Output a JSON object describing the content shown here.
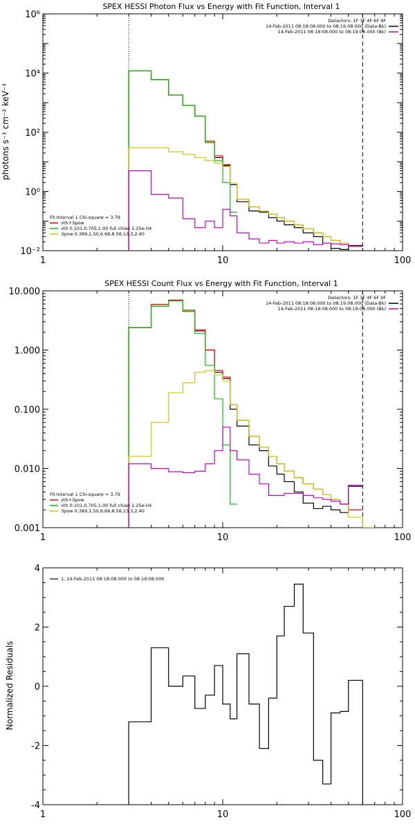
{
  "chart_data": [
    {
      "type": "line",
      "title": "SPEX HESSI Photon Flux vs Energy with Fit Function, Interval 1",
      "xlabel": "",
      "ylabel": "photons s⁻¹ cm⁻² keV⁻¹",
      "xscale": "log",
      "yscale": "log",
      "xlim": [
        1,
        100
      ],
      "ylim": [
        0.01,
        1000000
      ],
      "x_ticks": [
        {
          "value": 1,
          "label": "1"
        },
        {
          "value": 10,
          "label": "10"
        },
        {
          "value": 100,
          "label": "100"
        }
      ],
      "y_ticks": [
        {
          "value": 0.01,
          "label": "10⁻²"
        },
        {
          "value": 1,
          "label": "10⁰"
        },
        {
          "value": 100,
          "label": "10²"
        },
        {
          "value": 10000,
          "label": "10⁴"
        },
        {
          "value": 1000000,
          "label": "10⁶"
        }
      ],
      "vlines": [
        {
          "x": 3,
          "style": "dotted"
        },
        {
          "x": 60,
          "style": "dashed"
        }
      ],
      "legend_top": {
        "placement": "top-right",
        "lines": [
          {
            "text": "Detectors: 1F 3F 4F 6F 9F",
            "color": null
          },
          {
            "text": "14-Feb-2011 08:18:08.000 to 08:19:08.000 (Data-Bk)",
            "color": "#000000"
          },
          {
            "text": "14-Feb-2011 08:18:08.000 to 08:19:08.000 (Bk)",
            "color": "#cc00cc"
          }
        ]
      },
      "legend_fit": {
        "placement": "bottom-left",
        "lines": [
          {
            "text": "Fit Interval 1     Chi-square = 3.79",
            "color": null
          },
          {
            "text": "vth+3pow",
            "color": "#ff0000"
          },
          {
            "text": "vth 0.101,0.705,1.00  full chian 1.25e-04",
            "color": "#00cc00"
          },
          {
            "text": "3pow 0.389,1.50,6.68,8.58,13.3,2.40",
            "color": "#cccc00"
          }
        ]
      },
      "series": [
        {
          "color": "#000000",
          "edges": [
            3,
            4,
            5,
            6,
            7,
            8,
            9,
            10,
            11,
            12,
            14,
            16,
            18,
            20,
            22,
            25,
            28,
            32,
            36,
            40,
            45,
            50,
            60
          ],
          "values": [
            12000,
            6000,
            1800,
            800,
            350,
            45,
            14,
            7.5,
            1.7,
            0.45,
            0.22,
            0.2,
            0.13,
            0.1,
            0.075,
            0.06,
            0.04,
            0.03,
            0.018,
            0.012,
            0.011,
            0.015
          ]
        },
        {
          "color": "#ff0000",
          "edges": [
            3,
            4,
            5,
            6,
            7,
            8,
            9,
            10,
            11,
            12,
            14,
            16,
            18,
            20,
            22,
            25,
            28,
            32,
            36,
            40,
            45,
            50,
            60
          ],
          "values": [
            12000,
            6000,
            1800,
            800,
            350,
            50,
            16,
            8,
            1.9,
            0.55,
            0.3,
            0.22,
            0.17,
            0.13,
            0.1,
            0.075,
            0.055,
            0.04,
            0.03,
            0.022,
            0.018,
            0.014
          ]
        },
        {
          "color": "#00cc00",
          "edges": [
            3,
            4,
            5,
            6,
            7,
            8,
            9,
            10,
            11,
            12
          ],
          "values": [
            12000,
            6000,
            1800,
            800,
            350,
            45,
            11,
            2,
            0.2
          ]
        },
        {
          "color": "#cccc00",
          "edges": [
            3,
            4,
            5,
            6,
            7,
            8,
            9,
            10,
            11,
            12,
            14,
            16,
            18,
            20,
            22,
            25,
            28,
            32,
            36,
            40,
            45,
            50,
            60
          ],
          "values": [
            30,
            30,
            22,
            18,
            14,
            11,
            9,
            7,
            1.9,
            0.55,
            0.3,
            0.22,
            0.17,
            0.13,
            0.1,
            0.075,
            0.055,
            0.04,
            0.03,
            0.022,
            0.018,
            0.014
          ]
        },
        {
          "color": "#cc00cc",
          "edges": [
            3,
            4,
            5,
            6,
            7,
            8,
            9,
            10,
            11,
            12,
            14,
            16,
            18,
            20,
            22,
            25,
            28,
            32,
            36,
            40,
            45,
            50,
            60
          ],
          "values": [
            5,
            0.8,
            0.6,
            0.12,
            0.06,
            0.1,
            0.06,
            0.25,
            0.15,
            0.04,
            0.025,
            0.018,
            0.022,
            0.018,
            0.02,
            0.018,
            0.02,
            0.016,
            0.018,
            0.017,
            0.016,
            0.014
          ]
        }
      ]
    },
    {
      "type": "line",
      "title": "SPEX HESSI Count Flux vs Energy with Fit Function, Interval 1",
      "xlabel": "",
      "ylabel": "",
      "xscale": "log",
      "yscale": "log",
      "xlim": [
        1,
        100
      ],
      "ylim": [
        0.001,
        10
      ],
      "x_ticks": [
        {
          "value": 1,
          "label": "1"
        },
        {
          "value": 10,
          "label": "10"
        },
        {
          "value": 100,
          "label": "100"
        }
      ],
      "y_ticks": [
        {
          "value": 0.001,
          "label": "0.001"
        },
        {
          "value": 0.01,
          "label": "0.010"
        },
        {
          "value": 0.1,
          "label": "0.100"
        },
        {
          "value": 1,
          "label": "1.000"
        },
        {
          "value": 10,
          "label": "10.000"
        }
      ],
      "vlines": [
        {
          "x": 3,
          "style": "dotted"
        },
        {
          "x": 60,
          "style": "dashed"
        }
      ],
      "legend_top": {
        "placement": "top-right",
        "lines": [
          {
            "text": "Detectors: 1F 3F 4F 6F 9F",
            "color": null
          },
          {
            "text": "14-Feb-2011 08:18:08.000 to 08:19:08.000 (Data-Bk)",
            "color": "#000000"
          },
          {
            "text": "14-Feb-2011 08:18:08.000 to 08:19:08.000 (Bk)",
            "color": "#cc00cc"
          }
        ]
      },
      "legend_fit": {
        "placement": "bottom-left",
        "lines": [
          {
            "text": "Fit Interval 1     Chi-square = 3.79",
            "color": null
          },
          {
            "text": "vth+3pow",
            "color": "#ff0000"
          },
          {
            "text": "vth 0.101,0.705,1.00  full chian 1.25e-04",
            "color": "#00cc00"
          },
          {
            "text": "3pow 0.389,1.50,6.68,8.58,13.3,2.40",
            "color": "#cccc00"
          }
        ]
      },
      "series": [
        {
          "color": "#000000",
          "edges": [
            3,
            4,
            5,
            6,
            7,
            8,
            9,
            10,
            11,
            12,
            14,
            16,
            18,
            20,
            22,
            25,
            28,
            32,
            36,
            40,
            45,
            50,
            60
          ],
          "values": [
            2.4,
            5.5,
            6.8,
            4.5,
            2.1,
            1.0,
            0.42,
            0.33,
            0.1,
            0.052,
            0.025,
            0.02,
            0.011,
            0.008,
            0.006,
            0.004,
            0.0026,
            0.0021,
            0.0023,
            0.002,
            0.0018,
            0.005
          ]
        },
        {
          "color": "#ff0000",
          "edges": [
            3,
            4,
            5,
            6,
            7,
            8,
            9,
            10,
            11,
            12,
            14,
            16,
            18,
            20,
            22,
            25,
            28,
            32,
            36,
            40,
            45,
            50,
            60
          ],
          "values": [
            2.4,
            5.9,
            7.0,
            4.7,
            2.2,
            1.0,
            0.45,
            0.35,
            0.12,
            0.065,
            0.035,
            0.023,
            0.016,
            0.012,
            0.009,
            0.007,
            0.0055,
            0.0045,
            0.0036,
            0.003,
            0.0025,
            0.002
          ]
        },
        {
          "color": "#00cc00",
          "edges": [
            3,
            4,
            5,
            6,
            7,
            8,
            9,
            10,
            11,
            12
          ],
          "values": [
            2.4,
            5.5,
            6.8,
            4.5,
            1.9,
            0.55,
            0.15,
            0.025,
            0.0025
          ]
        },
        {
          "color": "#cccc00",
          "edges": [
            3,
            4,
            5,
            6,
            7,
            8,
            9,
            10,
            11,
            12,
            14,
            16,
            18,
            20,
            22,
            25,
            28,
            32,
            36,
            40,
            45,
            50,
            60,
            70
          ],
          "values": [
            0.016,
            0.06,
            0.19,
            0.28,
            0.42,
            0.45,
            0.38,
            0.3,
            0.12,
            0.065,
            0.035,
            0.023,
            0.016,
            0.012,
            0.009,
            0.007,
            0.0055,
            0.0045,
            0.0036,
            0.003,
            0.0025,
            0.0015,
            0.001
          ]
        },
        {
          "color": "#cc00cc",
          "edges": [
            3,
            4,
            5,
            6,
            7,
            8,
            9,
            10,
            11,
            12,
            14,
            16,
            18,
            20,
            22,
            25,
            28,
            32,
            36,
            40,
            45,
            50,
            60
          ],
          "values": [
            0.012,
            0.01,
            0.0088,
            0.0085,
            0.009,
            0.012,
            0.02,
            0.05,
            0.02,
            0.014,
            0.008,
            0.0055,
            0.0035,
            0.0035,
            0.0038,
            0.0038,
            0.0035,
            0.0032,
            0.003,
            0.0028,
            0.0025,
            0.0052
          ]
        }
      ]
    },
    {
      "type": "line",
      "title": "",
      "xlabel": "",
      "ylabel": "Normalized Residuals",
      "xscale": "log",
      "yscale": "linear",
      "xlim": [
        1,
        100
      ],
      "ylim": [
        -4,
        4
      ],
      "x_ticks": [
        {
          "value": 1,
          "label": "1"
        },
        {
          "value": 10,
          "label": "10"
        },
        {
          "value": 100,
          "label": "100"
        }
      ],
      "y_ticks": [
        {
          "value": -4,
          "label": "-4"
        },
        {
          "value": -2,
          "label": "-2"
        },
        {
          "value": 0,
          "label": "0"
        },
        {
          "value": 2,
          "label": "2"
        },
        {
          "value": 4,
          "label": "4"
        }
      ],
      "vlines": [],
      "legend_top": {
        "placement": "top-left",
        "lines": [
          {
            "text": "1. 14-Feb-2011 08:18:08.000 to 08:19:08.000",
            "color": "#000000"
          }
        ]
      },
      "series": [
        {
          "color": "#000000",
          "edges": [
            3,
            4,
            5,
            6,
            7,
            8,
            9,
            10,
            11,
            12,
            14,
            16,
            18,
            20,
            22,
            25,
            28,
            32,
            36,
            40,
            45,
            50,
            60
          ],
          "start": -4,
          "end": -4,
          "values": [
            -1.2,
            1.3,
            0,
            0.35,
            -0.75,
            -0.3,
            0.7,
            -0.6,
            -1.1,
            1.1,
            -0.6,
            -2.1,
            -0.4,
            1.7,
            2.7,
            3.45,
            1.8,
            -2.5,
            -3.3,
            -0.9,
            -0.85,
            0.2
          ]
        }
      ]
    }
  ]
}
